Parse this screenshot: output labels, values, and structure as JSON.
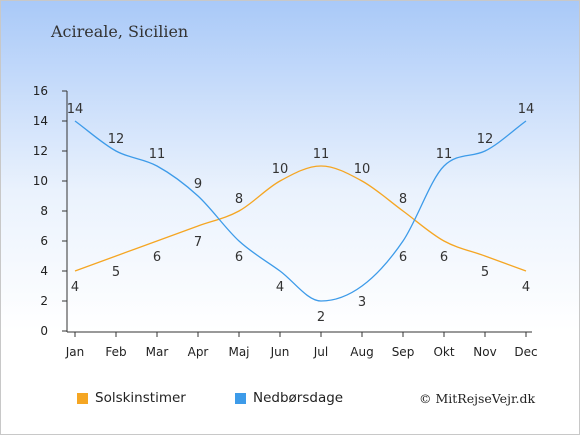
{
  "title": "Acireale, Sicilien",
  "credit": "© MitRejseVejr.dk",
  "colors": {
    "sun": "#f5a623",
    "rain": "#3d9be9",
    "axis": "#333333"
  },
  "chart_data": {
    "type": "line",
    "categories": [
      "Jan",
      "Feb",
      "Mar",
      "Apr",
      "Maj",
      "Jun",
      "Jul",
      "Aug",
      "Sep",
      "Okt",
      "Nov",
      "Dec"
    ],
    "ylim": [
      0,
      16
    ],
    "yticks": [
      0,
      2,
      4,
      6,
      8,
      10,
      12,
      14,
      16
    ],
    "grid": false,
    "legend_position": "bottom-left",
    "series": [
      {
        "name": "Solskinstimer",
        "color": "#f5a623",
        "values": [
          4,
          5,
          6,
          7,
          8,
          10,
          11,
          10,
          8,
          6,
          5,
          4
        ]
      },
      {
        "name": "Nedbørsdage",
        "color": "#3d9be9",
        "values": [
          14,
          12,
          11,
          9,
          6,
          4,
          2,
          3,
          6,
          11,
          12,
          14
        ]
      }
    ]
  }
}
